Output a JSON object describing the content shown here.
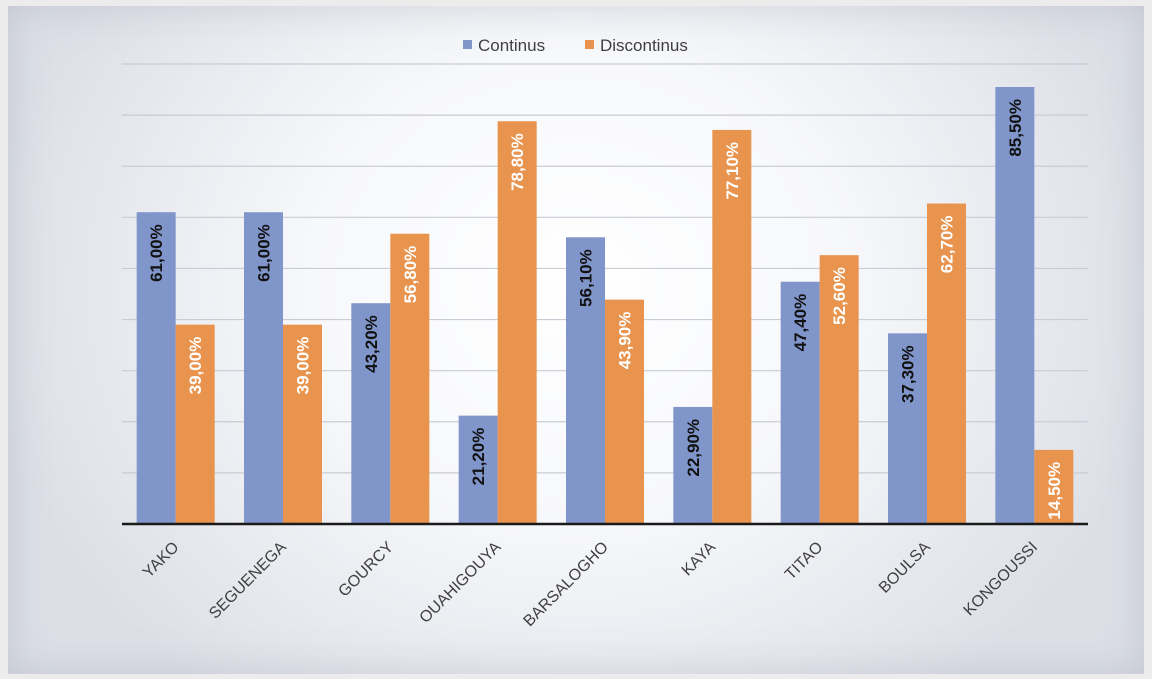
{
  "chart_data": {
    "type": "bar",
    "categories": [
      "YAKO",
      "SEGUENEGA",
      "GOURCY",
      "OUAHIGOUYA",
      "BARSALOGHO",
      "KAYA",
      "TITAO",
      "BOULSA",
      "KONGOUSSI"
    ],
    "series": [
      {
        "name": "Continus",
        "values": [
          61.0,
          61.0,
          43.2,
          21.2,
          56.1,
          22.9,
          47.4,
          37.3,
          85.5
        ],
        "labels": [
          "61,00%",
          "61,00%",
          "43,20%",
          "21,20%",
          "56,10%",
          "22,90%",
          "47,40%",
          "37,30%",
          "85,50%"
        ],
        "color": "#8095c9",
        "label_color": "#111111"
      },
      {
        "name": "Discontinus",
        "values": [
          39.0,
          39.0,
          56.8,
          78.8,
          43.9,
          77.1,
          52.6,
          62.7,
          14.5
        ],
        "labels": [
          "39,00%",
          "39,00%",
          "56,80%",
          "78,80%",
          "43,90%",
          "77,10%",
          "52,60%",
          "62,70%",
          "14,50%"
        ],
        "color": "#e8944e",
        "label_color": "#ffffff"
      }
    ],
    "ylim": [
      0,
      90
    ],
    "grid": true,
    "legend_position": "top-center",
    "xlabel": "",
    "ylabel": "",
    "title": ""
  }
}
